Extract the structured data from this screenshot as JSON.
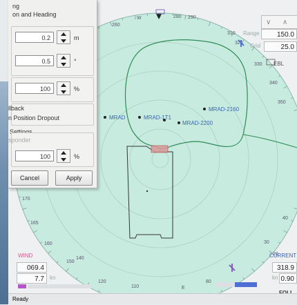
{
  "dialog": {
    "line1": "ng",
    "line2": "on and Heading",
    "field1_value": "0.2",
    "field1_unit": "m",
    "field2_value": "0.5",
    "field2_unit": "°",
    "field3_value": "100",
    "field3_unit": "%",
    "fallback_label": "llback",
    "dropout_label": "n Position Dropout",
    "settings_label": "Settings",
    "settings_hint": "sponder",
    "field4_value": "100",
    "field4_unit": "%",
    "cancel_label": "Cancel",
    "apply_label": "Apply"
  },
  "scope": {
    "ring_labels": [
      "W",
      "280",
      "290",
      "260",
      "310",
      "320",
      "330",
      "340",
      "350",
      "170",
      "165",
      "160",
      "150",
      "140",
      "120",
      "110",
      "E",
      "80",
      "40",
      "30",
      "20"
    ],
    "targets": [
      {
        "label": "MRAD-2160"
      },
      {
        "label": "MRAD-2200"
      },
      {
        "label": "MRAD-1T1"
      },
      {
        "label": "MRAD"
      }
    ]
  },
  "range": {
    "range_label": "Range",
    "range_value": "150.0",
    "grid_label": "Grid",
    "grid_value": "25.0",
    "ebl_label": "EBL"
  },
  "wind": {
    "title": "WIND",
    "direction": "069.4",
    "speed": "7.7",
    "speed_unit": "kn"
  },
  "current": {
    "title": "CURRENT",
    "direction": "318.9",
    "speed": "0.90",
    "speed_unit": "kn"
  },
  "follow_label": "FOLL",
  "status_text": "Ready",
  "colors": {
    "scope_fill": "#c8ebe0",
    "track_green": "#2e8b57",
    "target_blue": "#3a66b0",
    "wind_marker": "#b455c8",
    "current_marker": "#4f6fd6"
  }
}
